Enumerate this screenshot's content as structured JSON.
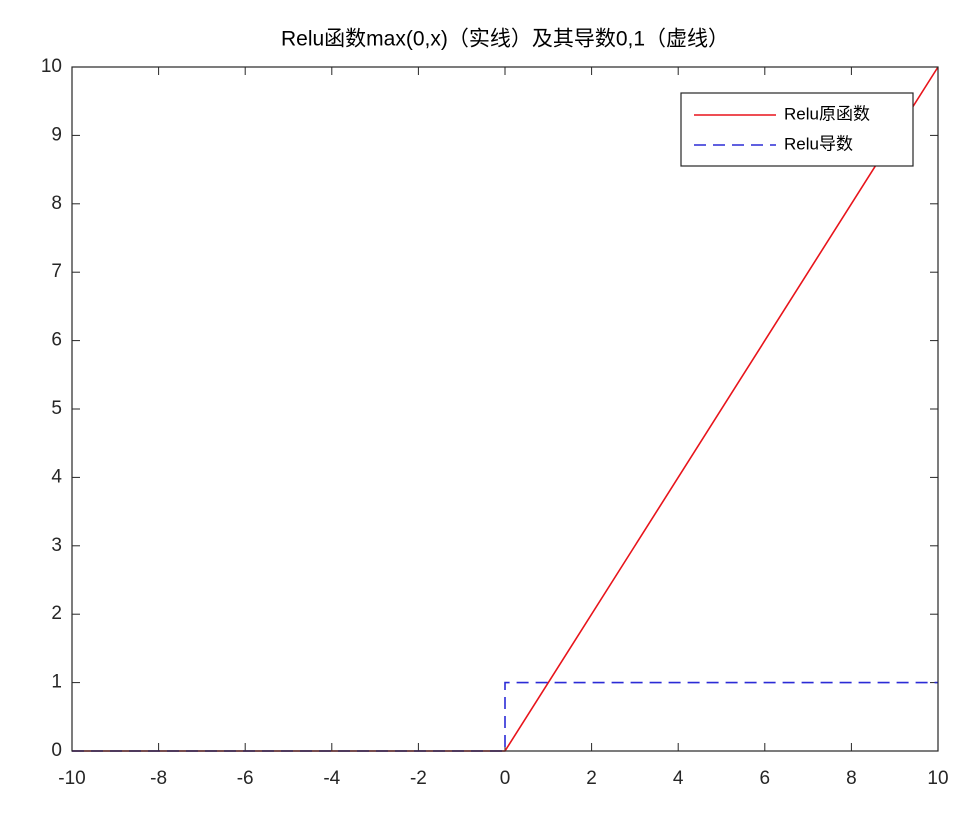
{
  "chart_data": {
    "type": "line",
    "title": "Relu函数max(0,x)（实线）及其导数0,1（虚线）",
    "series": [
      {
        "name": "Relu原函数",
        "color": "#e8141b",
        "line_style": "solid",
        "x": [
          -10,
          0,
          10
        ],
        "values": [
          0,
          0,
          10
        ]
      },
      {
        "name": "Relu导数",
        "color": "#2b2bd6",
        "line_style": "dashed",
        "x": [
          -10,
          0,
          0,
          10
        ],
        "values": [
          0,
          0,
          1,
          1
        ]
      }
    ],
    "xlim": [
      -10,
      10
    ],
    "xticks": [
      -10,
      -8,
      -6,
      -4,
      -2,
      0,
      2,
      4,
      6,
      8,
      10
    ],
    "ylim": [
      0,
      10
    ],
    "yticks": [
      0,
      1,
      2,
      3,
      4,
      5,
      6,
      7,
      8,
      9,
      10
    ],
    "legend": "upper right",
    "grid": false
  }
}
